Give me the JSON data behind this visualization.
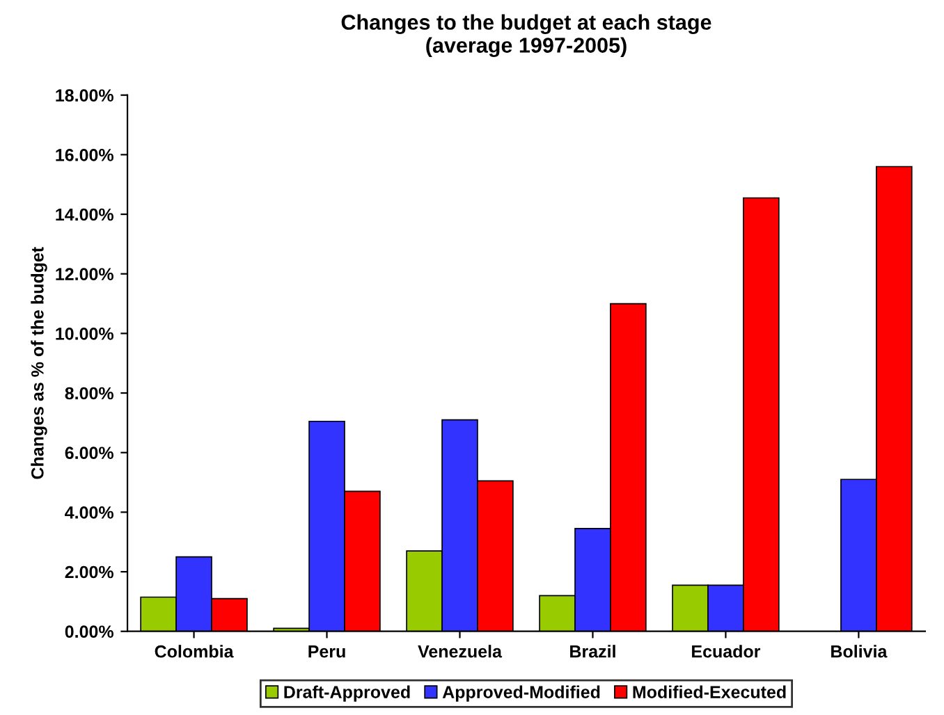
{
  "chart_data": {
    "type": "bar",
    "title": "Changes to the budget at each stage\n(average 1997-2005)",
    "ylabel": "Changes as % of the budget",
    "categories": [
      "Colombia",
      "Peru",
      "Venezuela",
      "Brazil",
      "Ecuador",
      "Bolivia"
    ],
    "series": [
      {
        "name": "Draft-Approved",
        "color": "#99cc00",
        "values": [
          1.15,
          0.1,
          2.7,
          1.2,
          1.55,
          null
        ]
      },
      {
        "name": "Approved-Modified",
        "color": "#3333ff",
        "values": [
          2.5,
          7.05,
          7.1,
          3.45,
          1.55,
          5.1
        ]
      },
      {
        "name": "Modified-Executed",
        "color": "#ff0000",
        "values": [
          1.1,
          4.7,
          5.05,
          11.0,
          14.55,
          15.6
        ]
      }
    ],
    "ylim": [
      0,
      18
    ],
    "yticks": [
      {
        "value": 0,
        "label": "0.00%"
      },
      {
        "value": 2,
        "label": "2.00%"
      },
      {
        "value": 4,
        "label": "4.00%"
      },
      {
        "value": 6,
        "label": "6.00%"
      },
      {
        "value": 8,
        "label": "8.00%"
      },
      {
        "value": 10,
        "label": "10.00%"
      },
      {
        "value": 12,
        "label": "12.00%"
      },
      {
        "value": 14,
        "label": "14.00%"
      },
      {
        "value": 16,
        "label": "16.00%"
      },
      {
        "value": 18,
        "label": "18.00%"
      }
    ],
    "grid": false,
    "legend": "bottom"
  }
}
